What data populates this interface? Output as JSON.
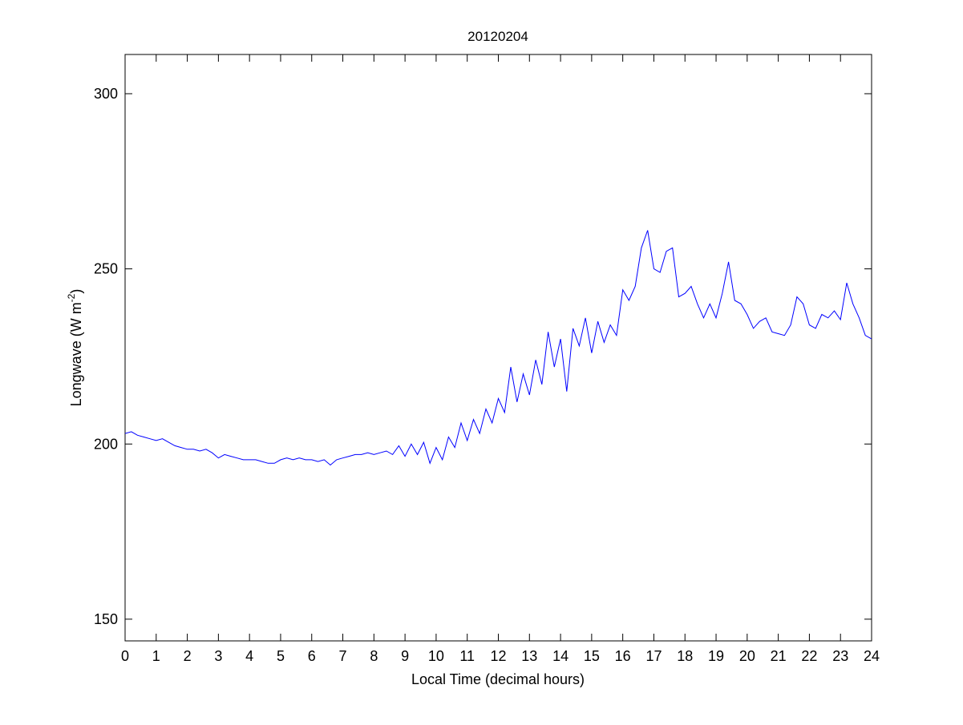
{
  "chart_data": {
    "type": "line",
    "title": "20120204",
    "xlabel": "Local Time (decimal hours)",
    "ylabel": "Longwave (W m",
    "ylabel_superscript": "-2",
    "ylabel_suffix": ")",
    "xlim": [
      0,
      24
    ],
    "ylim": [
      143.8,
      311.2
    ],
    "xticks": [
      0,
      1,
      2,
      3,
      4,
      5,
      6,
      7,
      8,
      9,
      10,
      11,
      12,
      13,
      14,
      15,
      16,
      17,
      18,
      19,
      20,
      21,
      22,
      23,
      24
    ],
    "yticks": [
      150,
      200,
      250,
      300
    ],
    "grid": false,
    "line_color": "#0000ff",
    "series": [
      {
        "name": "Longwave",
        "x_start": 0,
        "x_step": 0.2,
        "values": [
          203,
          203.5,
          202.5,
          202,
          201.5,
          201,
          201.5,
          200.5,
          199.5,
          199,
          198.5,
          198.5,
          198,
          198.5,
          197.5,
          196,
          197,
          196.5,
          196,
          195.5,
          195.5,
          195.5,
          195,
          194.5,
          194.5,
          195.5,
          196,
          195.5,
          196,
          195.5,
          195.5,
          195,
          195.5,
          194,
          195.5,
          196,
          196.5,
          197,
          197,
          197.5,
          197,
          197.5,
          198,
          197,
          199.5,
          196.5,
          200,
          197,
          200.5,
          194.5,
          199,
          195.5,
          202,
          199,
          206,
          201,
          207,
          203,
          210,
          206,
          213,
          209,
          222,
          212,
          220,
          214,
          224,
          217,
          232,
          222,
          230,
          215,
          233,
          228,
          236,
          226,
          235,
          229,
          234,
          231,
          244,
          241,
          245,
          256,
          261,
          250,
          249,
          255,
          256,
          242,
          243,
          245,
          240,
          236,
          240,
          236,
          243,
          252,
          241,
          240,
          237,
          233,
          235,
          236,
          232,
          231.5,
          231,
          234,
          242,
          240,
          234,
          233,
          237,
          236,
          238,
          235.5,
          246,
          240,
          236,
          231,
          230
        ]
      }
    ]
  }
}
